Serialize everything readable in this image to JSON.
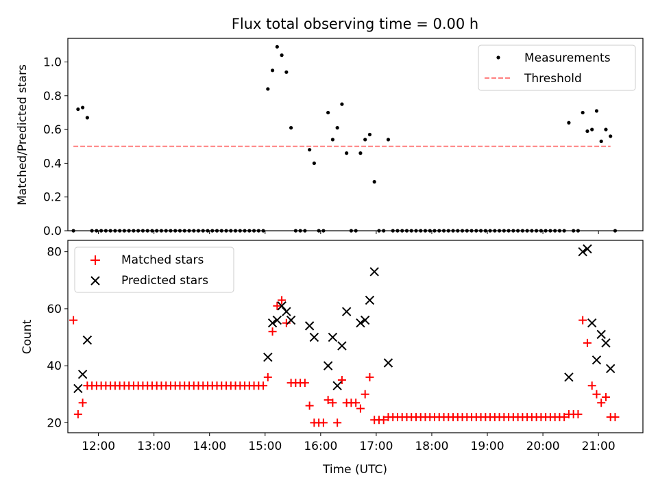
{
  "chart_data": [
    {
      "type": "scatter",
      "title": "Flux total observing time = 0.00 h",
      "ylabel": "Matched/Predicted stars",
      "xlim": [
        "11:27",
        "21:48"
      ],
      "ylim": [
        0,
        1.14
      ],
      "yticks": [
        "0.0",
        "0.2",
        "0.4",
        "0.6",
        "0.8",
        "1.0"
      ],
      "legend": "top-right",
      "series": [
        {
          "name": "Measurements",
          "marker": "dot",
          "color": "#000000",
          "points": [
            [
              "11:33",
              0
            ],
            [
              "11:38",
              0.72
            ],
            [
              "11:43",
              0.73
            ],
            [
              "11:48",
              0.67
            ],
            [
              "11:53",
              0
            ],
            [
              "11:58",
              0
            ],
            [
              "12:03",
              0
            ],
            [
              "12:08",
              0
            ],
            [
              "12:13",
              0
            ],
            [
              "12:18",
              0
            ],
            [
              "12:23",
              0
            ],
            [
              "12:28",
              0
            ],
            [
              "12:33",
              0
            ],
            [
              "12:38",
              0
            ],
            [
              "12:43",
              0
            ],
            [
              "12:48",
              0
            ],
            [
              "12:53",
              0
            ],
            [
              "12:58",
              0
            ],
            [
              "13:03",
              0
            ],
            [
              "13:08",
              0
            ],
            [
              "13:13",
              0
            ],
            [
              "13:18",
              0
            ],
            [
              "13:23",
              0
            ],
            [
              "13:28",
              0
            ],
            [
              "13:33",
              0
            ],
            [
              "13:38",
              0
            ],
            [
              "13:43",
              0
            ],
            [
              "13:48",
              0
            ],
            [
              "13:53",
              0
            ],
            [
              "13:58",
              0
            ],
            [
              "14:03",
              0
            ],
            [
              "14:08",
              0
            ],
            [
              "14:13",
              0
            ],
            [
              "14:18",
              0
            ],
            [
              "14:23",
              0
            ],
            [
              "14:28",
              0
            ],
            [
              "14:33",
              0
            ],
            [
              "14:38",
              0
            ],
            [
              "14:43",
              0
            ],
            [
              "14:48",
              0
            ],
            [
              "14:53",
              0
            ],
            [
              "14:58",
              0
            ],
            [
              "15:03",
              0.84
            ],
            [
              "15:08",
              0.95
            ],
            [
              "15:13",
              1.09
            ],
            [
              "15:18",
              1.04
            ],
            [
              "15:23",
              0.94
            ],
            [
              "15:28",
              0.61
            ],
            [
              "15:33",
              0
            ],
            [
              "15:38",
              0
            ],
            [
              "15:43",
              0
            ],
            [
              "15:48",
              0.48
            ],
            [
              "15:53",
              0.4
            ],
            [
              "15:58",
              0
            ],
            [
              "16:03",
              0
            ],
            [
              "16:08",
              0.7
            ],
            [
              "16:13",
              0.54
            ],
            [
              "16:18",
              0.61
            ],
            [
              "16:23",
              0.75
            ],
            [
              "16:28",
              0.46
            ],
            [
              "16:33",
              0
            ],
            [
              "16:38",
              0
            ],
            [
              "16:43",
              0.46
            ],
            [
              "16:48",
              0.54
            ],
            [
              "16:53",
              0.57
            ],
            [
              "16:58",
              0.29
            ],
            [
              "17:03",
              0
            ],
            [
              "17:08",
              0
            ],
            [
              "17:13",
              0.54
            ],
            [
              "17:18",
              0
            ],
            [
              "17:23",
              0
            ],
            [
              "17:28",
              0
            ],
            [
              "17:33",
              0
            ],
            [
              "17:38",
              0
            ],
            [
              "17:43",
              0
            ],
            [
              "17:48",
              0
            ],
            [
              "17:53",
              0
            ],
            [
              "17:58",
              0
            ],
            [
              "18:03",
              0
            ],
            [
              "18:08",
              0
            ],
            [
              "18:13",
              0
            ],
            [
              "18:18",
              0
            ],
            [
              "18:23",
              0
            ],
            [
              "18:28",
              0
            ],
            [
              "18:33",
              0
            ],
            [
              "18:38",
              0
            ],
            [
              "18:43",
              0
            ],
            [
              "18:48",
              0
            ],
            [
              "18:53",
              0
            ],
            [
              "18:58",
              0
            ],
            [
              "19:03",
              0
            ],
            [
              "19:08",
              0
            ],
            [
              "19:13",
              0
            ],
            [
              "19:18",
              0
            ],
            [
              "19:23",
              0
            ],
            [
              "19:28",
              0
            ],
            [
              "19:33",
              0
            ],
            [
              "19:38",
              0
            ],
            [
              "19:43",
              0
            ],
            [
              "19:48",
              0
            ],
            [
              "19:53",
              0
            ],
            [
              "19:58",
              0
            ],
            [
              "20:03",
              0
            ],
            [
              "20:08",
              0
            ],
            [
              "20:13",
              0
            ],
            [
              "20:18",
              0
            ],
            [
              "20:23",
              0
            ],
            [
              "20:28",
              0.64
            ],
            [
              "20:33",
              0
            ],
            [
              "20:38",
              0
            ],
            [
              "20:43",
              0.7
            ],
            [
              "20:48",
              0.59
            ],
            [
              "20:53",
              0.6
            ],
            [
              "20:58",
              0.71
            ],
            [
              "21:03",
              0.53
            ],
            [
              "21:08",
              0.6
            ],
            [
              "21:13",
              0.56
            ],
            [
              "21:18",
              0
            ]
          ]
        },
        {
          "name": "Threshold",
          "marker": "dashed-line",
          "color": "#ff7f7f",
          "points": [
            [
              "11:33",
              0.5
            ],
            [
              "21:13",
              0.5
            ]
          ]
        }
      ]
    },
    {
      "type": "scatter",
      "xlabel": "Time (UTC)",
      "ylabel": "Count",
      "xlim": [
        "11:27",
        "21:48"
      ],
      "ylim": [
        16.5,
        84
      ],
      "xticks": [
        "12:00",
        "13:00",
        "14:00",
        "15:00",
        "16:00",
        "17:00",
        "18:00",
        "19:00",
        "20:00",
        "21:00"
      ],
      "yticks": [
        "20",
        "40",
        "60",
        "80"
      ],
      "legend": "top-left",
      "series": [
        {
          "name": "Matched stars",
          "marker": "plus",
          "color": "#ff0000",
          "points": [
            [
              "11:33",
              56
            ],
            [
              "11:38",
              23
            ],
            [
              "11:43",
              27
            ],
            [
              "11:48",
              33
            ],
            [
              "11:53",
              33
            ],
            [
              "11:58",
              33
            ],
            [
              "12:03",
              33
            ],
            [
              "12:08",
              33
            ],
            [
              "12:13",
              33
            ],
            [
              "12:18",
              33
            ],
            [
              "12:23",
              33
            ],
            [
              "12:28",
              33
            ],
            [
              "12:33",
              33
            ],
            [
              "12:38",
              33
            ],
            [
              "12:43",
              33
            ],
            [
              "12:48",
              33
            ],
            [
              "12:53",
              33
            ],
            [
              "12:58",
              33
            ],
            [
              "13:03",
              33
            ],
            [
              "13:08",
              33
            ],
            [
              "13:13",
              33
            ],
            [
              "13:18",
              33
            ],
            [
              "13:23",
              33
            ],
            [
              "13:28",
              33
            ],
            [
              "13:33",
              33
            ],
            [
              "13:38",
              33
            ],
            [
              "13:43",
              33
            ],
            [
              "13:48",
              33
            ],
            [
              "13:53",
              33
            ],
            [
              "13:58",
              33
            ],
            [
              "14:03",
              33
            ],
            [
              "14:08",
              33
            ],
            [
              "14:13",
              33
            ],
            [
              "14:18",
              33
            ],
            [
              "14:23",
              33
            ],
            [
              "14:28",
              33
            ],
            [
              "14:33",
              33
            ],
            [
              "14:38",
              33
            ],
            [
              "14:43",
              33
            ],
            [
              "14:48",
              33
            ],
            [
              "14:53",
              33
            ],
            [
              "14:58",
              33
            ],
            [
              "15:03",
              36
            ],
            [
              "15:08",
              52
            ],
            [
              "15:13",
              61
            ],
            [
              "15:18",
              63
            ],
            [
              "15:23",
              55
            ],
            [
              "15:28",
              34
            ],
            [
              "15:33",
              34
            ],
            [
              "15:38",
              34
            ],
            [
              "15:43",
              34
            ],
            [
              "15:48",
              26
            ],
            [
              "15:53",
              20
            ],
            [
              "15:58",
              20
            ],
            [
              "16:03",
              20
            ],
            [
              "16:08",
              28
            ],
            [
              "16:13",
              27
            ],
            [
              "16:18",
              20
            ],
            [
              "16:23",
              35
            ],
            [
              "16:28",
              27
            ],
            [
              "16:33",
              27
            ],
            [
              "16:38",
              27
            ],
            [
              "16:43",
              25
            ],
            [
              "16:48",
              30
            ],
            [
              "16:53",
              36
            ],
            [
              "16:58",
              21
            ],
            [
              "17:03",
              21
            ],
            [
              "17:08",
              21
            ],
            [
              "17:13",
              22
            ],
            [
              "17:18",
              22
            ],
            [
              "17:23",
              22
            ],
            [
              "17:28",
              22
            ],
            [
              "17:33",
              22
            ],
            [
              "17:38",
              22
            ],
            [
              "17:43",
              22
            ],
            [
              "17:48",
              22
            ],
            [
              "17:53",
              22
            ],
            [
              "17:58",
              22
            ],
            [
              "18:03",
              22
            ],
            [
              "18:08",
              22
            ],
            [
              "18:13",
              22
            ],
            [
              "18:18",
              22
            ],
            [
              "18:23",
              22
            ],
            [
              "18:28",
              22
            ],
            [
              "18:33",
              22
            ],
            [
              "18:38",
              22
            ],
            [
              "18:43",
              22
            ],
            [
              "18:48",
              22
            ],
            [
              "18:53",
              22
            ],
            [
              "18:58",
              22
            ],
            [
              "19:03",
              22
            ],
            [
              "19:08",
              22
            ],
            [
              "19:13",
              22
            ],
            [
              "19:18",
              22
            ],
            [
              "19:23",
              22
            ],
            [
              "19:28",
              22
            ],
            [
              "19:33",
              22
            ],
            [
              "19:38",
              22
            ],
            [
              "19:43",
              22
            ],
            [
              "19:48",
              22
            ],
            [
              "19:53",
              22
            ],
            [
              "19:58",
              22
            ],
            [
              "20:03",
              22
            ],
            [
              "20:08",
              22
            ],
            [
              "20:13",
              22
            ],
            [
              "20:18",
              22
            ],
            [
              "20:23",
              22
            ],
            [
              "20:28",
              23
            ],
            [
              "20:33",
              23
            ],
            [
              "20:38",
              23
            ],
            [
              "20:43",
              56
            ],
            [
              "20:48",
              48
            ],
            [
              "20:53",
              33
            ],
            [
              "20:58",
              30
            ],
            [
              "21:03",
              27
            ],
            [
              "21:08",
              29
            ],
            [
              "21:13",
              22
            ],
            [
              "21:18",
              22
            ]
          ]
        },
        {
          "name": "Predicted stars",
          "marker": "x",
          "color": "#000000",
          "points": [
            [
              "11:38",
              32
            ],
            [
              "11:43",
              37
            ],
            [
              "11:48",
              49
            ],
            [
              "15:03",
              43
            ],
            [
              "15:08",
              55
            ],
            [
              "15:13",
              56
            ],
            [
              "15:18",
              61
            ],
            [
              "15:23",
              59
            ],
            [
              "15:28",
              56
            ],
            [
              "15:48",
              54
            ],
            [
              "15:53",
              50
            ],
            [
              "16:08",
              40
            ],
            [
              "16:13",
              50
            ],
            [
              "16:18",
              33
            ],
            [
              "16:23",
              47
            ],
            [
              "16:28",
              59
            ],
            [
              "16:43",
              55
            ],
            [
              "16:48",
              56
            ],
            [
              "16:53",
              63
            ],
            [
              "16:58",
              73
            ],
            [
              "17:13",
              41
            ],
            [
              "20:28",
              36
            ],
            [
              "20:43",
              80
            ],
            [
              "20:48",
              81
            ],
            [
              "20:53",
              55
            ],
            [
              "20:58",
              42
            ],
            [
              "21:03",
              51
            ],
            [
              "21:08",
              48
            ],
            [
              "21:13",
              39
            ]
          ]
        }
      ]
    }
  ]
}
